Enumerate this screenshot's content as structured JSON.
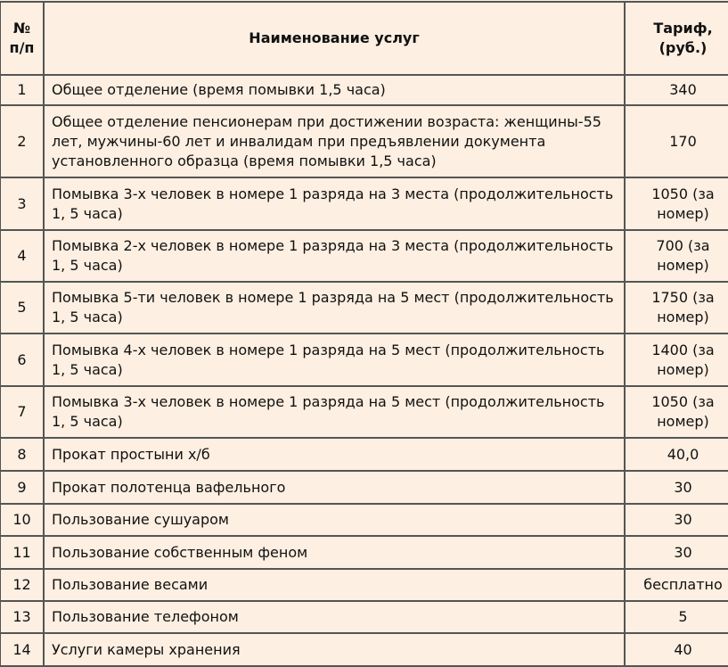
{
  "header": {
    "num": "№ п/п",
    "name": "Наименование услуг",
    "price": "Тариф, (руб.)"
  },
  "rows": [
    {
      "num": "1",
      "name": "Общее отделение (время помывки 1,5 часа)",
      "price": "340"
    },
    {
      "num": "2",
      "name": "Общее отделение пенсионерам при достижении возраста: женщины-55 лет, мужчины-60 лет и инвалидам при предъявлении документа установленного образца (время помывки 1,5 часа)",
      "price": "170"
    },
    {
      "num": "3",
      "name": "Помывка 3-х человек в номере 1 разряда на 3 места (продолжительность 1, 5 часа)",
      "price": "1050 (за номер)"
    },
    {
      "num": "4",
      "name": "Помывка 2-х человек в номере 1 разряда на 3 места (продолжительность 1, 5 часа)",
      "price": "700 (за номер)"
    },
    {
      "num": "5",
      "name": "Помывка 5-ти человек в номере 1 разряда на 5 мест (продолжительность 1, 5 часа)",
      "price": "1750 (за номер)"
    },
    {
      "num": "6",
      "name": "Помывка 4-х человек в номере 1 разряда на 5 мест (продолжительность 1, 5 часа)",
      "price": "1400 (за номер)"
    },
    {
      "num": "7",
      "name": "Помывка 3-х человек в номере 1 разряда на 5 мест (продолжительность 1, 5 часа)",
      "price": "1050 (за номер)"
    },
    {
      "num": "8",
      "name": "Прокат простыни х/б",
      "price": "40,0"
    },
    {
      "num": "9",
      "name": "Прокат полотенца вафельного",
      "price": "30"
    },
    {
      "num": "10",
      "name": "Пользование сушуаром",
      "price": "30"
    },
    {
      "num": "11",
      "name": "Пользование собственным феном",
      "price": "30"
    },
    {
      "num": "12",
      "name": "Пользование весами",
      "price": "бесплатно"
    },
    {
      "num": "13",
      "name": "Пользование телефоном",
      "price": "5"
    },
    {
      "num": "14",
      "name": "Услуги камеры хранения",
      "price": "40"
    }
  ]
}
